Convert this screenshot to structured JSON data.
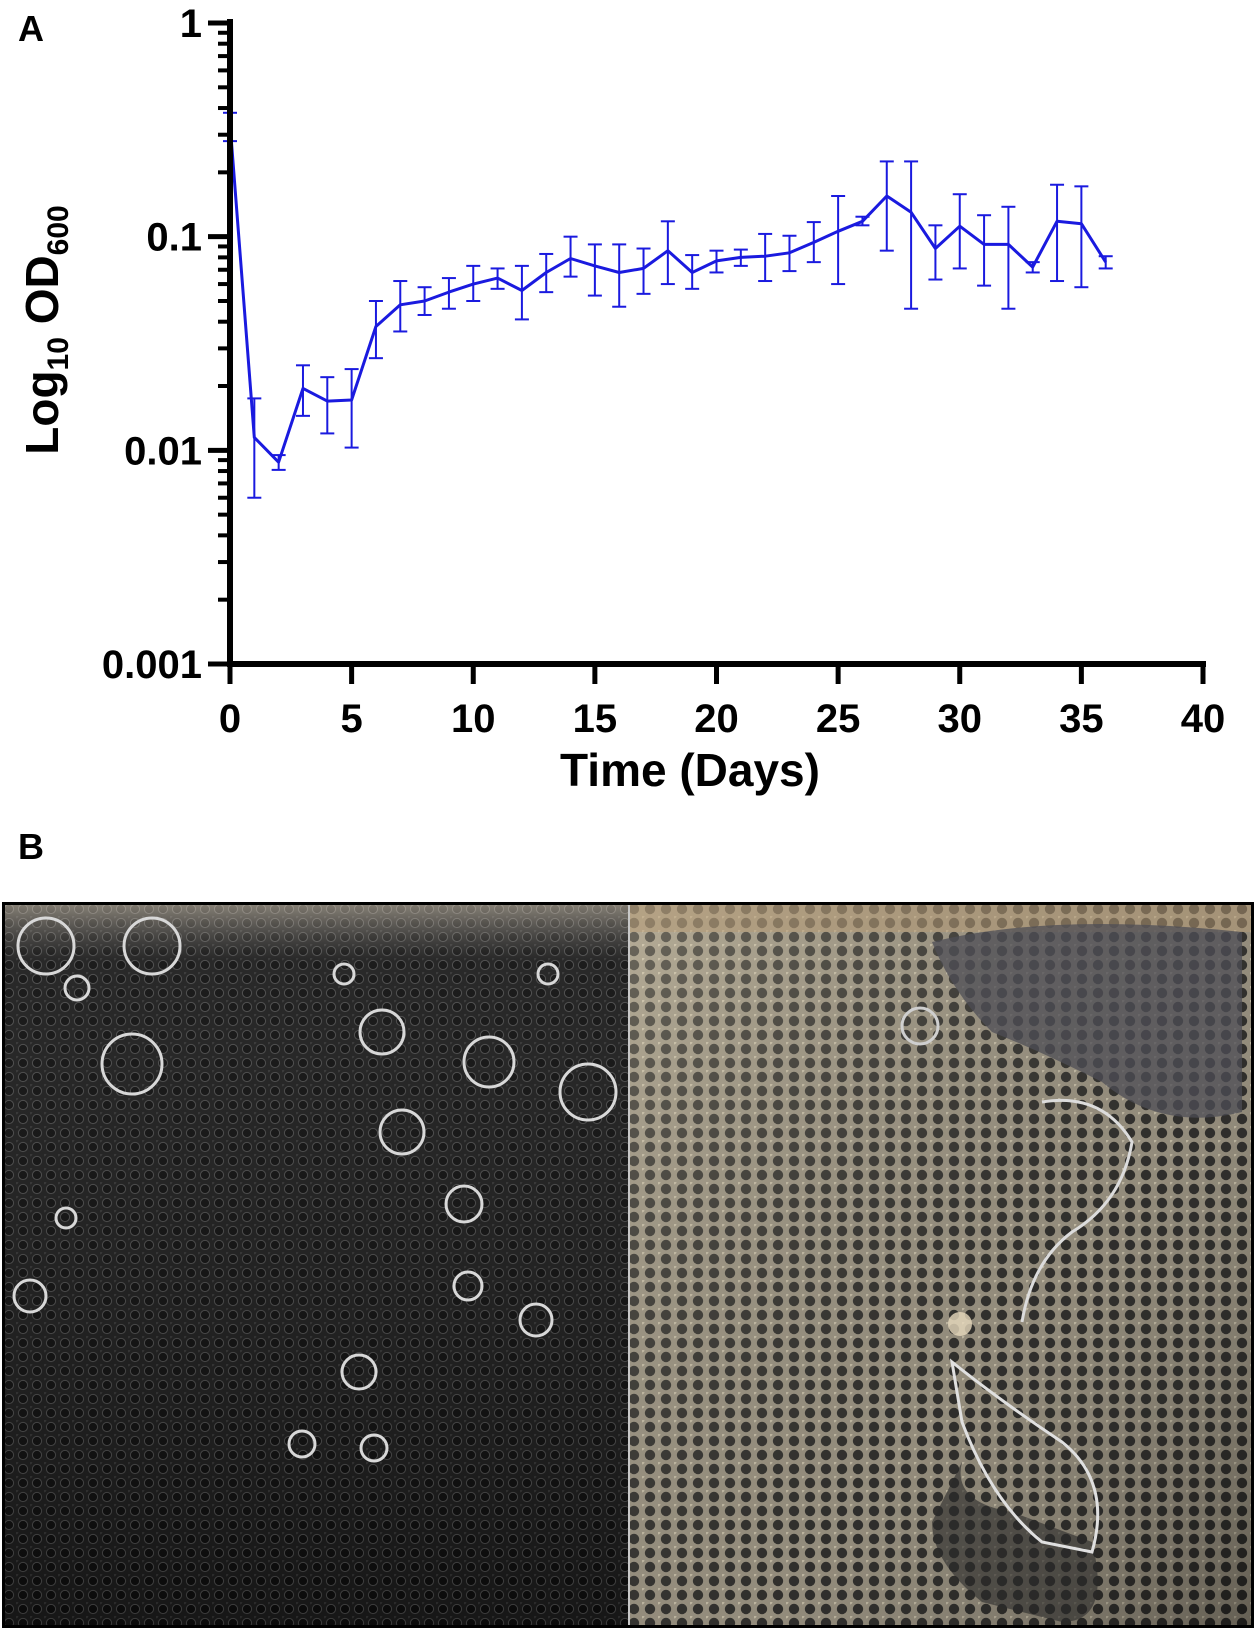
{
  "panels": {
    "a": "A",
    "b": "B"
  },
  "chart_data": {
    "type": "line",
    "title": "",
    "xlabel": "Time (Days)",
    "ylabel": {
      "base": "Log",
      "base_sub": "10",
      "main": " OD",
      "main_sub": "600"
    },
    "xlim": [
      0,
      40
    ],
    "ylim": [
      0.001,
      1
    ],
    "y_scale": "log",
    "x_ticks": [
      0,
      5,
      10,
      15,
      20,
      25,
      30,
      35,
      40
    ],
    "x_tick_labels": [
      "0",
      "5",
      "10",
      "15",
      "20",
      "25",
      "30",
      "35",
      "40"
    ],
    "y_ticks": [
      0.001,
      0.01,
      0.1,
      1
    ],
    "y_tick_labels": [
      "0.001",
      "0.01",
      "0.1",
      "1"
    ],
    "grid": false,
    "legend": "none",
    "line_color": "#1a1adf",
    "series": [
      {
        "x": [
          0,
          1,
          2,
          3,
          4,
          5,
          6,
          7,
          8,
          9,
          10,
          11,
          12,
          13,
          14,
          15,
          16,
          17,
          18,
          19,
          20,
          21,
          22,
          23,
          24,
          25,
          26,
          27,
          28,
          29,
          30,
          31,
          32,
          33,
          34,
          35,
          36
        ],
        "y": [
          0.34,
          0.0115,
          0.0088,
          0.0195,
          0.017,
          0.0172,
          0.038,
          0.048,
          0.05,
          0.055,
          0.06,
          0.064,
          0.056,
          0.068,
          0.079,
          0.073,
          0.068,
          0.071,
          0.086,
          0.068,
          0.077,
          0.08,
          0.081,
          0.084,
          0.094,
          0.106,
          0.118,
          0.155,
          0.13,
          0.088,
          0.112,
          0.092,
          0.092,
          0.072,
          0.118,
          0.115,
          0.076
        ],
        "err_lo": [
          0.28,
          0.006,
          0.0081,
          0.0145,
          0.012,
          0.0103,
          0.027,
          0.036,
          0.043,
          0.046,
          0.05,
          0.057,
          0.041,
          0.055,
          0.065,
          0.053,
          0.047,
          0.054,
          0.06,
          0.057,
          0.068,
          0.073,
          0.062,
          0.069,
          0.076,
          0.06,
          0.113,
          0.086,
          0.046,
          0.063,
          0.071,
          0.059,
          0.046,
          0.068,
          0.062,
          0.058,
          0.071
        ],
        "err_hi": [
          0.38,
          0.0175,
          0.0095,
          0.025,
          0.022,
          0.024,
          0.05,
          0.062,
          0.058,
          0.064,
          0.073,
          0.071,
          0.073,
          0.083,
          0.1,
          0.092,
          0.092,
          0.088,
          0.118,
          0.082,
          0.086,
          0.087,
          0.103,
          0.101,
          0.117,
          0.155,
          0.124,
          0.225,
          0.225,
          0.113,
          0.158,
          0.126,
          0.138,
          0.076,
          0.175,
          0.172,
          0.081
        ]
      }
    ]
  },
  "photo": {
    "divider_color": "#c8c8c8",
    "left_bg": "#1f1f1f",
    "right_bg": "#6b6658",
    "frame_color": "#000000"
  }
}
